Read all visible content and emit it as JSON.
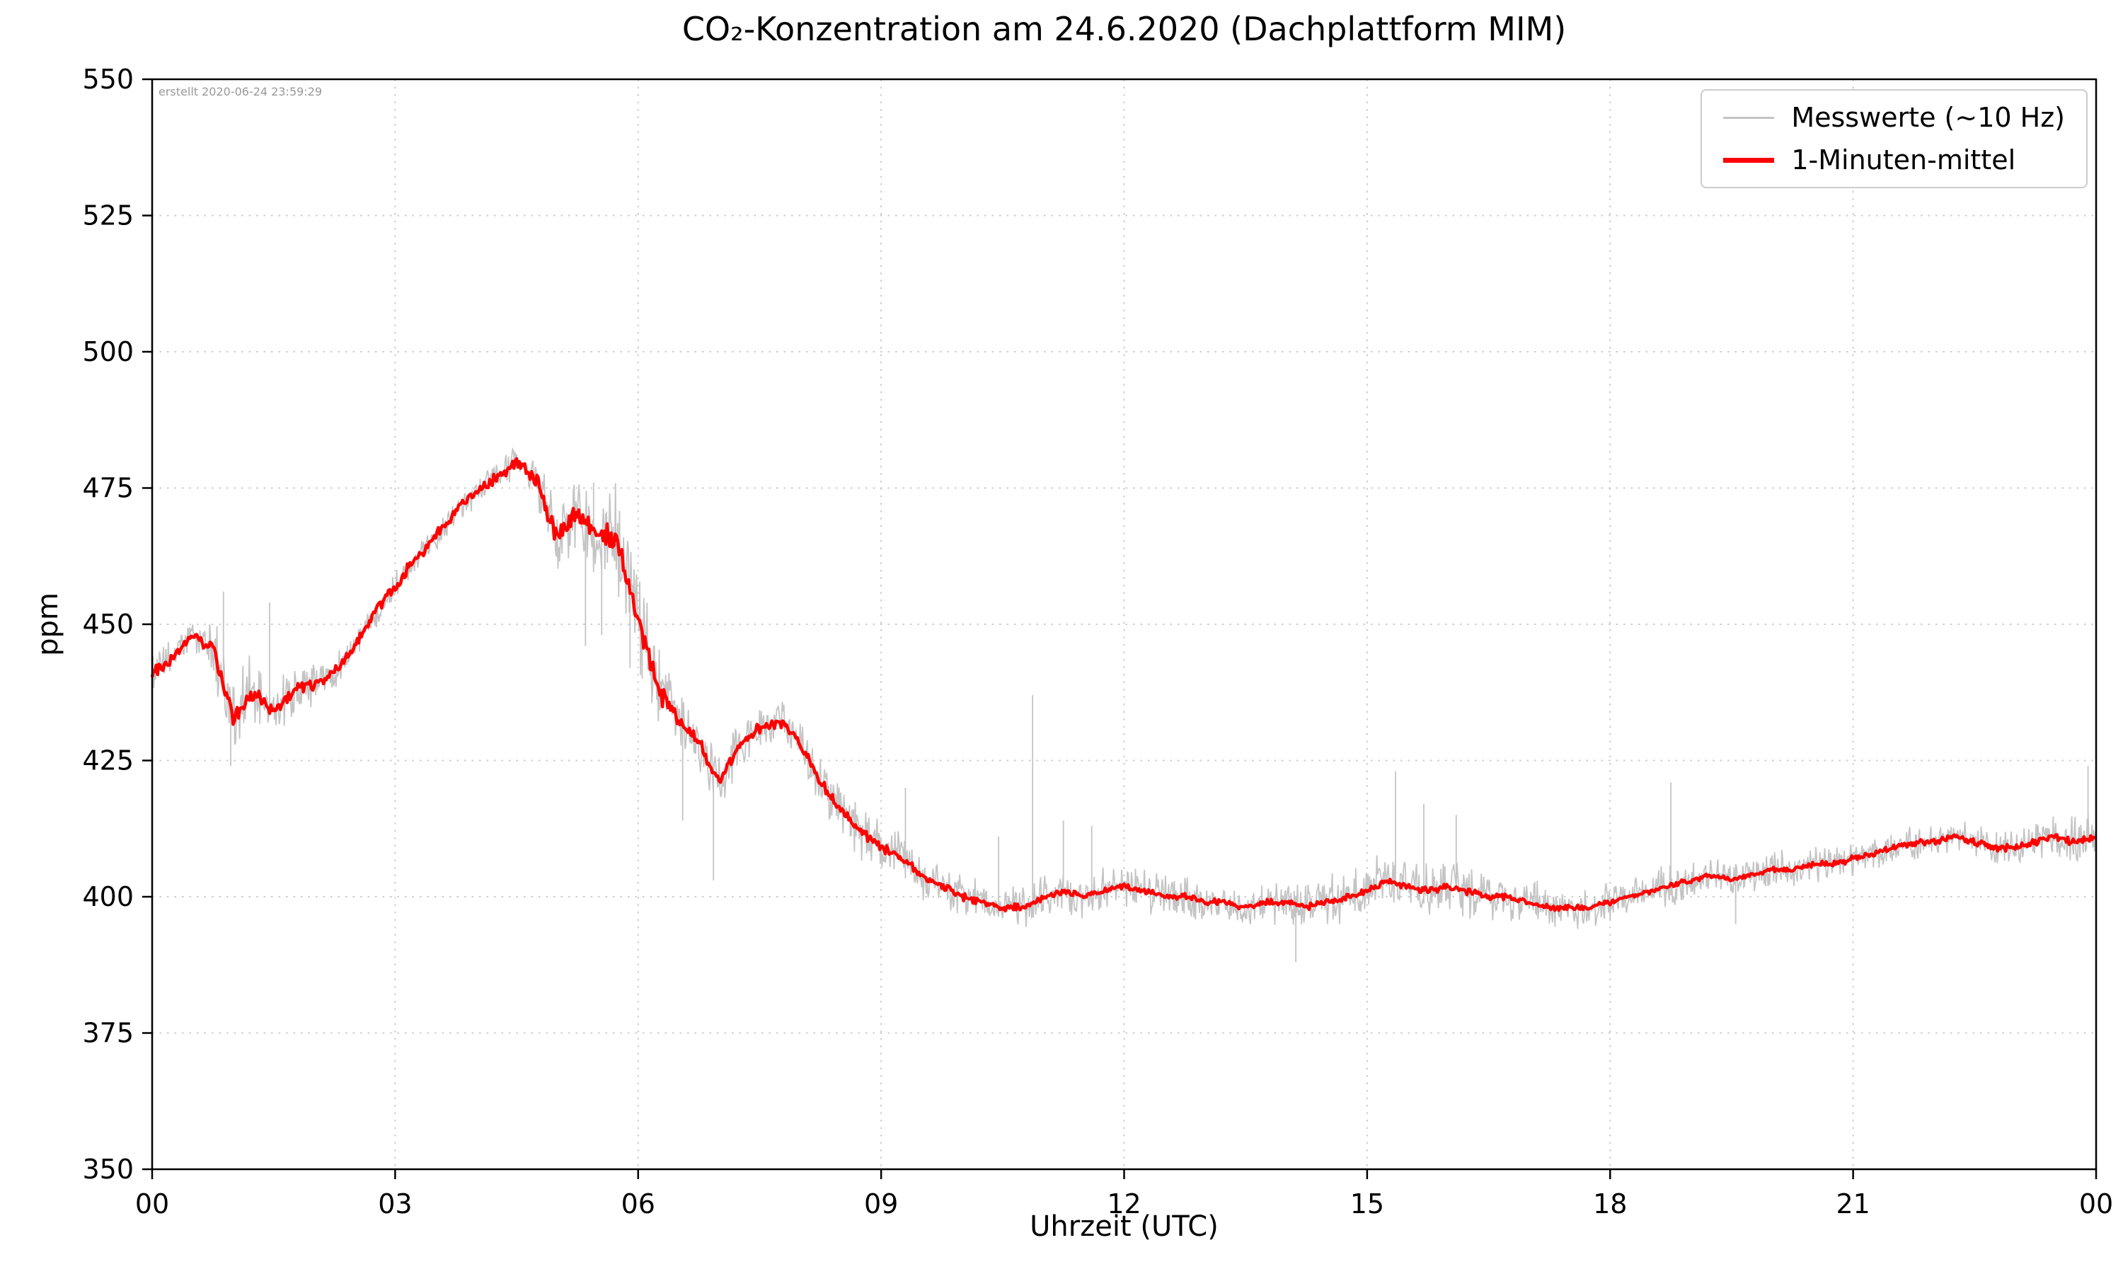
{
  "chart_data": {
    "type": "line",
    "title": "CO₂-Konzentration am 24.6.2020 (Dachplattform MIM)",
    "xlabel": "Uhrzeit (UTC)",
    "ylabel": "ppm",
    "annotation": "erstellt 2020-06-24 23:59:29",
    "xlim": [
      0,
      24
    ],
    "ylim": [
      350,
      550
    ],
    "xticks": {
      "values": [
        0,
        3,
        6,
        9,
        12,
        15,
        18,
        21,
        24
      ],
      "labels": [
        "00",
        "03",
        "06",
        "09",
        "12",
        "15",
        "18",
        "21",
        "00"
      ]
    },
    "yticks": [
      350,
      375,
      400,
      425,
      450,
      475,
      500,
      525,
      550
    ],
    "grid": true,
    "grid_style": "dotted",
    "colors": {
      "raw": "#c4c4c4",
      "mean": "#ff0000",
      "grid": "#cccccc",
      "spine": "#000000",
      "annotation": "#999999"
    },
    "legend": {
      "position": "top-right",
      "entries": [
        {
          "label": "Messwerte (~10 Hz)",
          "color": "#c4c4c4",
          "linewidth": "thin"
        },
        {
          "label": "1-Minuten-mittel",
          "color": "#ff0000",
          "linewidth": "thick"
        }
      ]
    },
    "x_unit": "hours UTC",
    "y_unit": "ppm",
    "series": [
      {
        "name": "Messwerte (~10 Hz)",
        "role": "raw",
        "color": "#c4c4c4",
        "description": "10 Hz raw values: noisy band around the 1-minute mean",
        "noise_envelope": {
          "x": [
            0,
            0.5,
            0.8,
            1.1,
            1.4,
            1.8,
            2.2,
            3,
            4,
            4.6,
            4.9,
            5.2,
            5.6,
            6.0,
            6.3,
            6.6,
            7.0,
            7.5,
            8.0,
            8.7,
            9.3,
            10,
            11,
            12,
            13,
            14,
            15,
            15.7,
            16.5,
            17.5,
            18.5,
            19.5,
            21,
            22,
            23,
            24
          ],
          "amp": [
            3,
            3.5,
            7,
            8,
            6,
            5,
            3,
            2.5,
            2.5,
            3,
            6,
            8,
            10,
            10,
            7,
            5,
            5,
            4,
            4.5,
            5,
            5,
            4,
            4,
            4,
            4,
            4.5,
            5,
            5.5,
            4.5,
            4,
            4,
            3.5,
            3,
            3,
            3.5,
            5
          ]
        },
        "spikes": [
          {
            "x": 0.88,
            "y": 456
          },
          {
            "x": 0.97,
            "y": 424
          },
          {
            "x": 1.45,
            "y": 454
          },
          {
            "x": 5.35,
            "y": 446
          },
          {
            "x": 5.45,
            "y": 476
          },
          {
            "x": 5.55,
            "y": 448
          },
          {
            "x": 5.9,
            "y": 442
          },
          {
            "x": 6.05,
            "y": 440
          },
          {
            "x": 6.55,
            "y": 414
          },
          {
            "x": 6.93,
            "y": 403
          },
          {
            "x": 9.3,
            "y": 420
          },
          {
            "x": 10.45,
            "y": 411
          },
          {
            "x": 10.87,
            "y": 437
          },
          {
            "x": 11.25,
            "y": 414
          },
          {
            "x": 11.6,
            "y": 413
          },
          {
            "x": 14.12,
            "y": 388
          },
          {
            "x": 15.35,
            "y": 423
          },
          {
            "x": 15.7,
            "y": 417
          },
          {
            "x": 16.1,
            "y": 415
          },
          {
            "x": 18.75,
            "y": 421
          },
          {
            "x": 19.55,
            "y": 395
          },
          {
            "x": 23.9,
            "y": 424
          }
        ]
      },
      {
        "name": "1-Minuten-mittel",
        "role": "mean",
        "color": "#ff0000",
        "x_start": 0,
        "x_step": 0.25,
        "y": [
          441,
          444,
          448,
          446,
          433,
          437,
          434,
          438,
          439,
          441,
          446,
          452,
          457,
          462,
          466,
          471,
          474,
          477,
          480,
          476,
          466,
          470,
          467,
          465,
          451,
          438,
          432,
          428,
          421,
          428,
          431,
          432,
          428,
          421,
          416,
          412,
          409,
          407,
          404,
          402,
          400,
          399,
          398,
          398,
          400,
          401,
          400,
          401,
          402,
          401,
          400,
          400,
          399,
          399,
          398,
          399,
          399,
          398,
          399,
          400,
          401,
          403,
          402,
          401,
          402,
          401,
          400,
          400,
          399,
          398,
          398,
          398,
          399,
          400,
          401,
          402,
          403,
          404,
          403,
          404,
          405,
          405,
          406,
          406,
          407,
          408,
          409,
          410,
          410,
          411,
          410,
          409,
          409,
          410,
          411,
          410,
          411
        ],
        "wiggle_envelope": {
          "x": [
            0,
            1,
            2,
            3,
            4.5,
            5,
            5.8,
            6.3,
            7,
            8,
            9,
            10,
            12,
            14,
            16,
            18,
            20,
            22,
            24
          ],
          "amp": [
            1.3,
            1.8,
            1.2,
            1.2,
            1.2,
            2.2,
            2.5,
            2.0,
            1.2,
            1.2,
            1.0,
            0.8,
            0.7,
            0.7,
            0.8,
            0.6,
            0.6,
            0.7,
            0.8
          ]
        }
      }
    ]
  }
}
